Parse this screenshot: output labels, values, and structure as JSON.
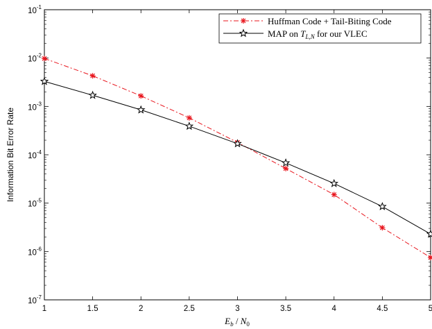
{
  "chart_data": {
    "type": "line",
    "x": [
      1,
      1.5,
      2,
      2.5,
      3,
      3.5,
      4,
      4.5,
      5
    ],
    "xlim": [
      1,
      5
    ],
    "ylim_exponents": [
      -7,
      -1
    ],
    "y_scale": "log",
    "x_ticks": [
      "1",
      "1.5",
      "2",
      "2.5",
      "3",
      "3.5",
      "4",
      "4.5",
      "5"
    ],
    "y_ticks": [
      {
        "base": "10",
        "exp": "-1"
      },
      {
        "base": "10",
        "exp": "-2"
      },
      {
        "base": "10",
        "exp": "-3"
      },
      {
        "base": "10",
        "exp": "-4"
      },
      {
        "base": "10",
        "exp": "-5"
      },
      {
        "base": "10",
        "exp": "-6"
      },
      {
        "base": "10",
        "exp": "-7"
      }
    ],
    "xlabel": {
      "E": "E",
      "b": "b",
      "slash": " / ",
      "N": "N",
      "zero": "0"
    },
    "ylabel": "Information Bit Error Rate",
    "legend_position": "top-right",
    "grid": false,
    "series": [
      {
        "name": "Huffman Code + Tail-Biting Code",
        "color": "#e8141c",
        "line_style": "dash-dot",
        "marker": "asterisk",
        "values": [
          0.0098,
          0.0043,
          0.00165,
          0.00058,
          0.00018,
          5.2e-05,
          1.5e-05,
          3.1e-06,
          7.5e-07
        ]
      },
      {
        "name_parts": {
          "prefix": "MAP on ",
          "T": "T",
          "sub": "L,N",
          "suffix": " for our VLEC"
        },
        "color": "#000000",
        "line_style": "solid",
        "marker": "star",
        "values": [
          0.0033,
          0.0017,
          0.00085,
          0.00039,
          0.00017,
          6.8e-05,
          2.55e-05,
          8.5e-06,
          2.3e-06
        ]
      }
    ]
  }
}
